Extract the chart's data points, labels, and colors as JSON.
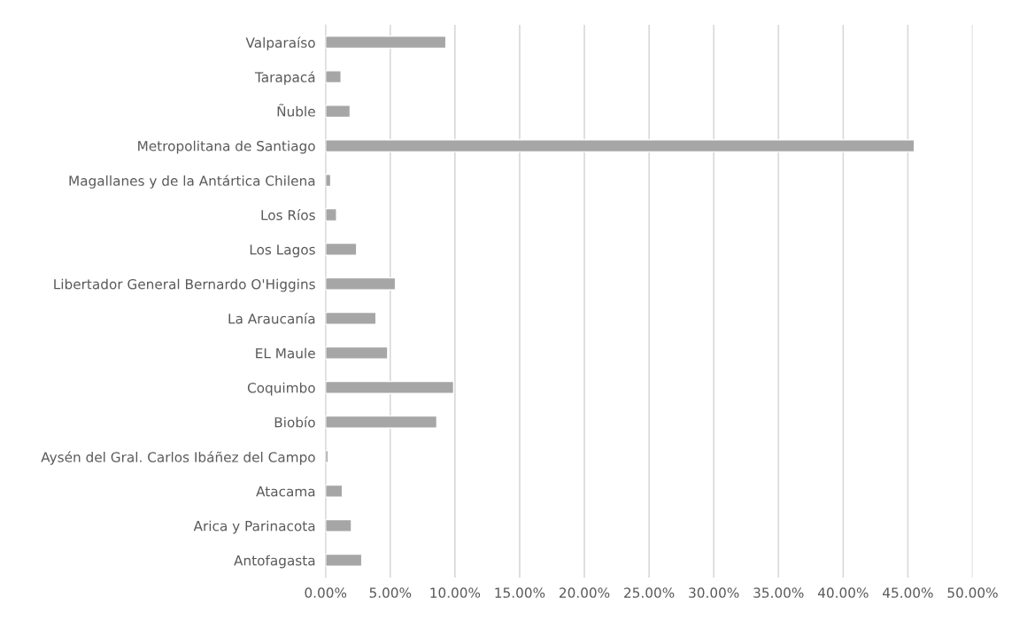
{
  "chart_data": {
    "type": "bar",
    "orientation": "horizontal",
    "categories": [
      "Valparaíso",
      "Tarapacá",
      "Ñuble",
      "Metropolitana de Santiago",
      "Magallanes y de la Antártica Chilena",
      "Los Ríos",
      "Los Lagos",
      "Libertador General Bernardo O'Higgins",
      "La Araucanía",
      "EL Maule",
      "Coquimbo",
      "Biobío",
      "Aysén del Gral. Carlos Ibáñez del Campo",
      "Atacama",
      "Arica y Parinacota",
      "Antofagasta"
    ],
    "values": [
      9.3,
      1.2,
      1.9,
      45.5,
      0.4,
      0.85,
      2.4,
      5.4,
      3.9,
      4.8,
      9.9,
      8.6,
      0.2,
      1.3,
      2.0,
      2.8
    ],
    "color": "#a6a6a6",
    "xlim": [
      0,
      50
    ],
    "xticks": [
      {
        "value": 0,
        "label": "0.00%"
      },
      {
        "value": 5,
        "label": "5.00%"
      },
      {
        "value": 10,
        "label": "10.00%"
      },
      {
        "value": 15,
        "label": "15.00%"
      },
      {
        "value": 20,
        "label": "20.00%"
      },
      {
        "value": 25,
        "label": "25.00%"
      },
      {
        "value": 30,
        "label": "30.00%"
      },
      {
        "value": 35,
        "label": "35.00%"
      },
      {
        "value": 40,
        "label": "40.00%"
      },
      {
        "value": 45,
        "label": "45.00%"
      },
      {
        "value": 50,
        "label": "50.00%"
      }
    ],
    "grid": "x",
    "legend": false
  }
}
